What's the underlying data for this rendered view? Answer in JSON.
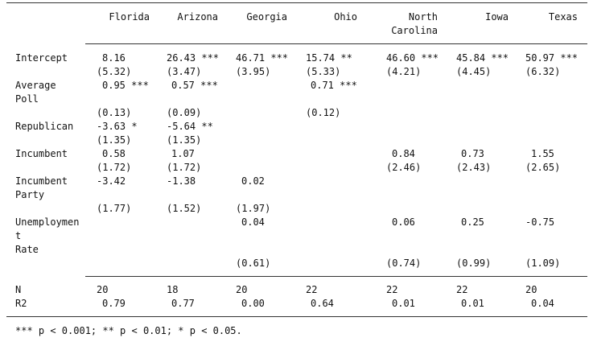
{
  "table": {
    "columns": [
      "Florida",
      "Arizona",
      "Georgia",
      "Ohio",
      "North\nCarolina",
      "Iowa",
      "Texas"
    ],
    "rows": [
      {
        "label": "Intercept",
        "cells": [
          "8.16",
          "26.43 ***",
          "46.71 ***",
          "15.74 **",
          "46.60 ***",
          "45.84 ***",
          "50.97 ***"
        ]
      },
      {
        "label": "",
        "cells": [
          "(5.32)",
          "(3.47)",
          "(3.95)",
          "(5.33)",
          "(4.21)",
          "(4.45)",
          "(6.32)"
        ]
      },
      {
        "label": "Average\nPoll",
        "cells": [
          "0.95 ***",
          "0.57 ***",
          "",
          "0.71 ***",
          "",
          "",
          ""
        ]
      },
      {
        "label": "",
        "cells": [
          "(0.13)",
          "(0.09)",
          "",
          "(0.12)",
          "",
          "",
          ""
        ]
      },
      {
        "label": "Republican",
        "cells": [
          "-3.63 *",
          "-5.64 **",
          "",
          "",
          "",
          "",
          ""
        ]
      },
      {
        "label": "",
        "cells": [
          "(1.35)",
          "(1.35)",
          "",
          "",
          "",
          "",
          ""
        ]
      },
      {
        "label": "Incumbent",
        "cells": [
          "0.58",
          "1.07",
          "",
          "",
          "0.84",
          "0.73",
          "1.55"
        ]
      },
      {
        "label": "",
        "cells": [
          "(1.72)",
          "(1.72)",
          "",
          "",
          "(2.46)",
          "(2.43)",
          "(2.65)"
        ]
      },
      {
        "label": "Incumbent\nParty",
        "cells": [
          "-3.42",
          "-1.38",
          "0.02",
          "",
          "",
          "",
          ""
        ]
      },
      {
        "label": "",
        "cells": [
          "(1.77)",
          "(1.52)",
          "(1.97)",
          "",
          "",
          "",
          ""
        ]
      },
      {
        "label": "Unemploymen\nt\nRate",
        "cells": [
          "",
          "",
          "0.04",
          "",
          "0.06",
          "0.25",
          "-0.75"
        ]
      },
      {
        "label": "",
        "cells": [
          "",
          "",
          "(0.61)",
          "",
          "(0.74)",
          "(0.99)",
          "(1.09)"
        ]
      }
    ],
    "stats": [
      {
        "label": "N",
        "cells": [
          "20",
          "18",
          "20",
          "22",
          "22",
          "22",
          "20"
        ]
      },
      {
        "label": "R2",
        "cells": [
          "0.79",
          "0.77",
          "0.00",
          "0.64",
          "0.01",
          "0.01",
          "0.04"
        ]
      }
    ]
  },
  "footnote": "*** p < 0.001; ** p < 0.01; * p < 0.05."
}
